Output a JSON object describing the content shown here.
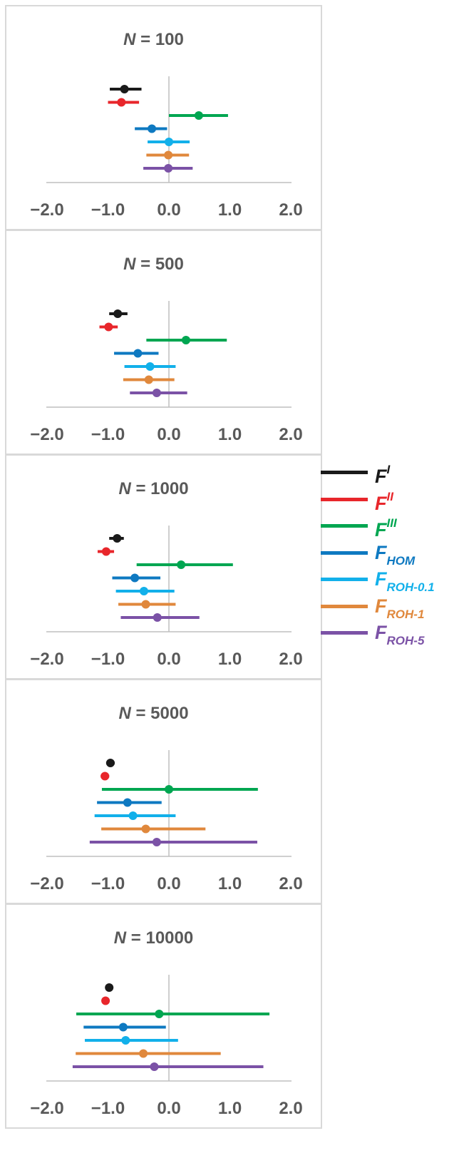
{
  "chart_data": {
    "type": "forest",
    "xlim": [
      -2.0,
      2.0
    ],
    "x_ticks": [
      "−2.0",
      "−1.0",
      "0.0",
      "1.0",
      "2.0"
    ],
    "reference_line": 0.0,
    "legend": {
      "placement": "right",
      "entries": [
        {
          "key": "FI",
          "base": "F",
          "sup": "I",
          "sub": "",
          "color": "#1a1a1a"
        },
        {
          "key": "FII",
          "base": "F",
          "sup": "II",
          "sub": "",
          "color": "#e8262b"
        },
        {
          "key": "FIII",
          "base": "F",
          "sup": "III",
          "sub": "",
          "color": "#00a651"
        },
        {
          "key": "FHOM",
          "base": "F",
          "sup": "",
          "sub": "HOM",
          "color": "#0e79c1"
        },
        {
          "key": "FROH01",
          "base": "F",
          "sup": "",
          "sub": "ROH-0.1",
          "color": "#12b0ea"
        },
        {
          "key": "FROH1",
          "base": "F",
          "sup": "",
          "sub": "ROH-1",
          "color": "#e0883c"
        },
        {
          "key": "FROH5",
          "base": "F",
          "sup": "",
          "sub": "ROH-5",
          "color": "#7b52a6"
        }
      ]
    },
    "panels": [
      {
        "title_var": "N",
        "title_rest": " = 100",
        "series": [
          {
            "name": "FI",
            "estimate": -0.73,
            "low": -0.97,
            "high": -0.45
          },
          {
            "name": "FII",
            "estimate": -0.78,
            "low": -1.0,
            "high": -0.49
          },
          {
            "name": "FIII",
            "estimate": 0.49,
            "low": 0.0,
            "high": 0.97
          },
          {
            "name": "FHOM",
            "estimate": -0.28,
            "low": -0.56,
            "high": -0.03
          },
          {
            "name": "FROH01",
            "estimate": 0.0,
            "low": -0.35,
            "high": 0.34
          },
          {
            "name": "FROH1",
            "estimate": -0.01,
            "low": -0.37,
            "high": 0.33
          },
          {
            "name": "FROH5",
            "estimate": -0.01,
            "low": -0.42,
            "high": 0.39
          }
        ]
      },
      {
        "title_var": "N",
        "title_rest": " = 500",
        "series": [
          {
            "name": "FI",
            "estimate": -0.84,
            "low": -0.98,
            "high": -0.68
          },
          {
            "name": "FII",
            "estimate": -0.99,
            "low": -1.14,
            "high": -0.84
          },
          {
            "name": "FIII",
            "estimate": 0.28,
            "low": -0.37,
            "high": 0.95
          },
          {
            "name": "FHOM",
            "estimate": -0.51,
            "low": -0.9,
            "high": -0.17
          },
          {
            "name": "FROH01",
            "estimate": -0.31,
            "low": -0.73,
            "high": 0.11
          },
          {
            "name": "FROH1",
            "estimate": -0.33,
            "low": -0.75,
            "high": 0.09
          },
          {
            "name": "FROH5",
            "estimate": -0.2,
            "low": -0.64,
            "high": 0.3
          }
        ]
      },
      {
        "title_var": "N",
        "title_rest": " = 1000",
        "series": [
          {
            "name": "FI",
            "estimate": -0.85,
            "low": -0.98,
            "high": -0.74
          },
          {
            "name": "FII",
            "estimate": -1.03,
            "low": -1.17,
            "high": -0.9
          },
          {
            "name": "FIII",
            "estimate": 0.2,
            "low": -0.53,
            "high": 1.05
          },
          {
            "name": "FHOM",
            "estimate": -0.56,
            "low": -0.93,
            "high": -0.14
          },
          {
            "name": "FROH01",
            "estimate": -0.41,
            "low": -0.87,
            "high": 0.09
          },
          {
            "name": "FROH1",
            "estimate": -0.38,
            "low": -0.83,
            "high": 0.11
          },
          {
            "name": "FROH5",
            "estimate": -0.19,
            "low": -0.79,
            "high": 0.5
          }
        ]
      },
      {
        "title_var": "N",
        "title_rest": " = 5000",
        "series": [
          {
            "name": "FI",
            "estimate": -0.96,
            "low": -1.03,
            "high": -0.89
          },
          {
            "name": "FII",
            "estimate": -1.05,
            "low": -1.12,
            "high": -0.98
          },
          {
            "name": "FIII",
            "estimate": 0.0,
            "low": -1.1,
            "high": 1.46
          },
          {
            "name": "FHOM",
            "estimate": -0.68,
            "low": -1.18,
            "high": -0.12
          },
          {
            "name": "FROH01",
            "estimate": -0.59,
            "low": -1.22,
            "high": 0.11
          },
          {
            "name": "FROH1",
            "estimate": -0.38,
            "low": -1.11,
            "high": 0.6
          },
          {
            "name": "FROH5",
            "estimate": -0.2,
            "low": -1.3,
            "high": 1.45
          }
        ]
      },
      {
        "title_var": "N",
        "title_rest": " = 10000",
        "series": [
          {
            "name": "FI",
            "estimate": -0.98,
            "low": -1.02,
            "high": -0.93
          },
          {
            "name": "FII",
            "estimate": -1.04,
            "low": -1.09,
            "high": -0.99
          },
          {
            "name": "FIII",
            "estimate": -0.16,
            "low": -1.52,
            "high": 1.65
          },
          {
            "name": "FHOM",
            "estimate": -0.75,
            "low": -1.4,
            "high": -0.05
          },
          {
            "name": "FROH01",
            "estimate": -0.71,
            "low": -1.38,
            "high": 0.15
          },
          {
            "name": "FROH1",
            "estimate": -0.42,
            "low": -1.53,
            "high": 0.85
          },
          {
            "name": "FROH5",
            "estimate": -0.24,
            "low": -1.58,
            "high": 1.55
          }
        ]
      }
    ]
  }
}
